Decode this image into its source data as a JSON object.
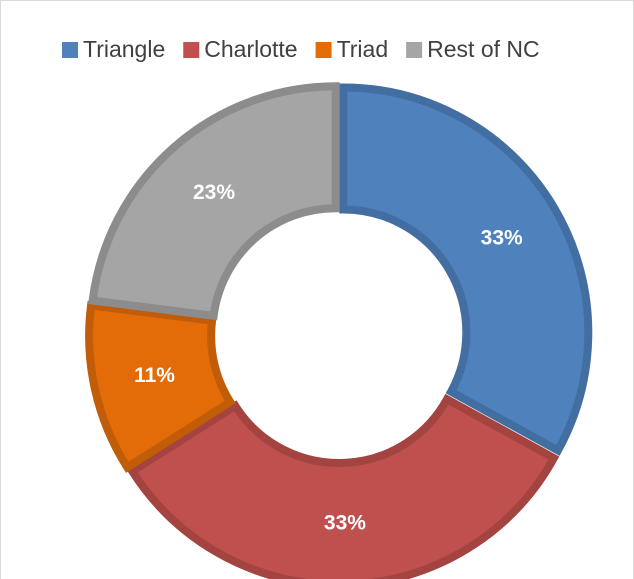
{
  "chart_data": {
    "type": "donut",
    "categories": [
      "Triangle",
      "Charlotte",
      "Triad",
      "Rest of NC"
    ],
    "values": [
      33,
      33,
      11,
      23
    ],
    "value_labels": [
      "33%",
      "33%",
      "11%",
      "23%"
    ],
    "colors": [
      "#4f81bd",
      "#c0504d",
      "#e36c09",
      "#a5a5a5"
    ],
    "legend": "top"
  }
}
